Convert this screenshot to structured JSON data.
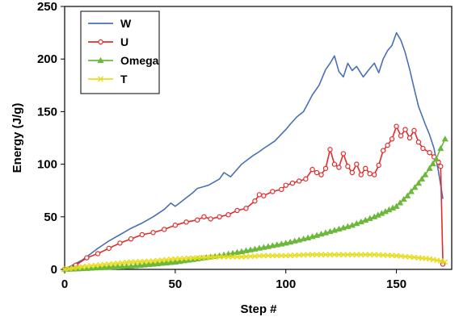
{
  "chart_data": {
    "type": "line",
    "title": "",
    "xlabel": "Step #",
    "ylabel": "Energy (J/g)",
    "xlim": [
      0,
      175
    ],
    "ylim": [
      0,
      250
    ],
    "x_ticks": [
      0,
      50,
      100,
      150
    ],
    "y_ticks": [
      0,
      50,
      100,
      150,
      200,
      250
    ],
    "grid": false,
    "legend": "top-left",
    "series": [
      {
        "name": "W",
        "color": "#4a6fb5",
        "marker": "none",
        "points": [
          [
            0,
            0
          ],
          [
            8,
            9
          ],
          [
            10,
            12
          ],
          [
            15,
            20
          ],
          [
            20,
            27
          ],
          [
            25,
            33
          ],
          [
            30,
            39
          ],
          [
            35,
            44
          ],
          [
            40,
            50
          ],
          [
            45,
            57
          ],
          [
            48,
            63
          ],
          [
            50,
            60
          ],
          [
            55,
            68
          ],
          [
            58,
            73
          ],
          [
            60,
            77
          ],
          [
            65,
            80
          ],
          [
            70,
            86
          ],
          [
            72,
            92
          ],
          [
            75,
            88
          ],
          [
            80,
            100
          ],
          [
            85,
            108
          ],
          [
            88,
            112
          ],
          [
            90,
            115
          ],
          [
            95,
            122
          ],
          [
            100,
            133
          ],
          [
            102,
            138
          ],
          [
            105,
            145
          ],
          [
            108,
            150
          ],
          [
            110,
            158
          ],
          [
            112,
            166
          ],
          [
            115,
            175
          ],
          [
            118,
            190
          ],
          [
            120,
            196
          ],
          [
            122,
            203
          ],
          [
            124,
            188
          ],
          [
            126,
            183
          ],
          [
            128,
            196
          ],
          [
            130,
            189
          ],
          [
            132,
            193
          ],
          [
            135,
            183
          ],
          [
            138,
            191
          ],
          [
            140,
            196
          ],
          [
            142,
            187
          ],
          [
            144,
            200
          ],
          [
            146,
            208
          ],
          [
            148,
            213
          ],
          [
            150,
            225
          ],
          [
            152,
            218
          ],
          [
            154,
            206
          ],
          [
            156,
            190
          ],
          [
            158,
            172
          ],
          [
            160,
            155
          ],
          [
            163,
            138
          ],
          [
            165,
            128
          ],
          [
            167,
            115
          ],
          [
            169,
            93
          ],
          [
            171,
            67
          ]
        ]
      },
      {
        "name": "U",
        "color": "#e32b2b",
        "marker": "circle",
        "points": [
          [
            0,
            0
          ],
          [
            5,
            4
          ],
          [
            10,
            11
          ],
          [
            15,
            15
          ],
          [
            20,
            20
          ],
          [
            25,
            25
          ],
          [
            30,
            29
          ],
          [
            35,
            33
          ],
          [
            40,
            35
          ],
          [
            45,
            38
          ],
          [
            50,
            42
          ],
          [
            55,
            45
          ],
          [
            60,
            47
          ],
          [
            63,
            50
          ],
          [
            66,
            48
          ],
          [
            70,
            50
          ],
          [
            74,
            52
          ],
          [
            78,
            56
          ],
          [
            82,
            58
          ],
          [
            86,
            65
          ],
          [
            88,
            71
          ],
          [
            90,
            70
          ],
          [
            94,
            74
          ],
          [
            98,
            76
          ],
          [
            100,
            80
          ],
          [
            103,
            82
          ],
          [
            106,
            84
          ],
          [
            109,
            86
          ],
          [
            112,
            95
          ],
          [
            114,
            92
          ],
          [
            116,
            90
          ],
          [
            118,
            96
          ],
          [
            120,
            114
          ],
          [
            122,
            100
          ],
          [
            124,
            97
          ],
          [
            126,
            110
          ],
          [
            128,
            98
          ],
          [
            130,
            92
          ],
          [
            132,
            100
          ],
          [
            134,
            90
          ],
          [
            136,
            96
          ],
          [
            138,
            91
          ],
          [
            140,
            90
          ],
          [
            142,
            99
          ],
          [
            144,
            113
          ],
          [
            146,
            118
          ],
          [
            148,
            124
          ],
          [
            150,
            136
          ],
          [
            152,
            127
          ],
          [
            154,
            133
          ],
          [
            156,
            125
          ],
          [
            158,
            132
          ],
          [
            160,
            121
          ],
          [
            162,
            115
          ],
          [
            165,
            111
          ],
          [
            167,
            107
          ],
          [
            169,
            102
          ],
          [
            170,
            98
          ],
          [
            171,
            5
          ]
        ]
      },
      {
        "name": "Omega",
        "color": "#6cb83a",
        "marker": "triangle",
        "points": [
          [
            0,
            0
          ],
          [
            10,
            1
          ],
          [
            20,
            2
          ],
          [
            30,
            3
          ],
          [
            40,
            5
          ],
          [
            50,
            7
          ],
          [
            60,
            10
          ],
          [
            70,
            13
          ],
          [
            80,
            17
          ],
          [
            90,
            21
          ],
          [
            100,
            25
          ],
          [
            110,
            30
          ],
          [
            120,
            36
          ],
          [
            130,
            42
          ],
          [
            140,
            50
          ],
          [
            145,
            55
          ],
          [
            150,
            60
          ],
          [
            155,
            70
          ],
          [
            160,
            82
          ],
          [
            163,
            90
          ],
          [
            165,
            96
          ],
          [
            168,
            105
          ],
          [
            170,
            115
          ],
          [
            172,
            124
          ]
        ]
      },
      {
        "name": "T",
        "color": "#e8dc20",
        "marker": "x",
        "points": [
          [
            0,
            0
          ],
          [
            10,
            3
          ],
          [
            20,
            5
          ],
          [
            30,
            7
          ],
          [
            40,
            8
          ],
          [
            50,
            10
          ],
          [
            60,
            11
          ],
          [
            70,
            12
          ],
          [
            80,
            12
          ],
          [
            90,
            13
          ],
          [
            100,
            13
          ],
          [
            110,
            14
          ],
          [
            120,
            14
          ],
          [
            130,
            14
          ],
          [
            140,
            14
          ],
          [
            150,
            13
          ],
          [
            160,
            11
          ],
          [
            165,
            10
          ],
          [
            170,
            8
          ],
          [
            172,
            7
          ]
        ]
      }
    ]
  }
}
